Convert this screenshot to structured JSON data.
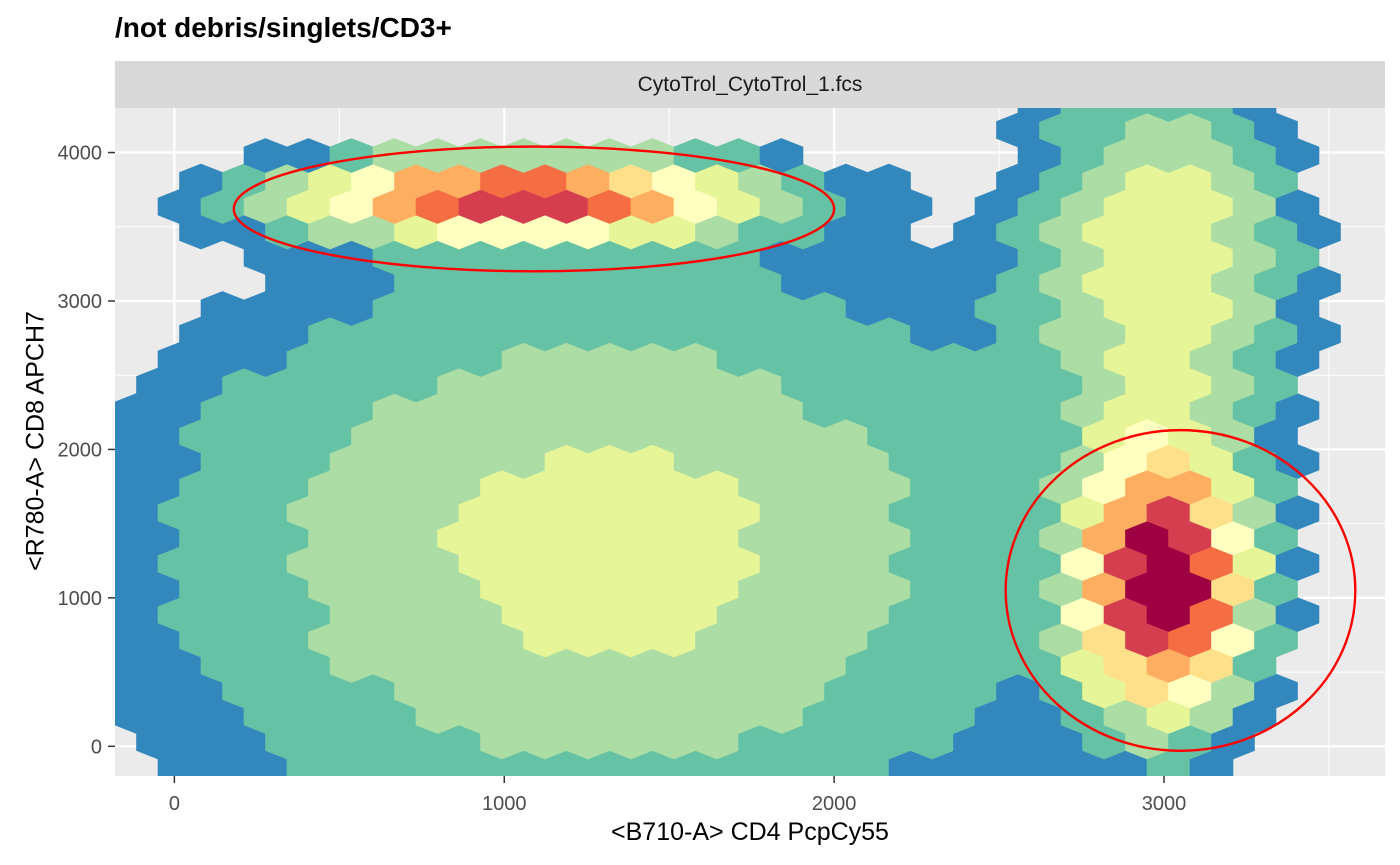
{
  "chart_data": {
    "type": "hexbin",
    "title": "/not debris/singlets/CD3+",
    "facet": "CytoTrol_CytoTrol_1.fcs",
    "xlabel": "<B710-A> CD4 PcpCy55",
    "ylabel": "<R780-A> CD8 APCH7",
    "xlim": [
      -180,
      3670
    ],
    "ylim": [
      -200,
      4300
    ],
    "xticks": [
      0,
      1000,
      2000,
      3000
    ],
    "yticks": [
      0,
      1000,
      2000,
      3000,
      4000
    ],
    "grid": true,
    "palette": "Spectral (reversed)",
    "colors": [
      "#5e4fa2",
      "#3288bd",
      "#66c2a5",
      "#abdda4",
      "#e6f598",
      "#ffffbf",
      "#fee08b",
      "#fdae61",
      "#f46d43",
      "#d53e4f",
      "#9e0142"
    ],
    "populations": [
      {
        "cx": 1050,
        "cy": 3700,
        "sx": 430,
        "sy": 170,
        "peak": 0.8
      },
      {
        "cx": 1300,
        "cy": 1300,
        "sx": 900,
        "sy": 1350,
        "peak": 0.28
      },
      {
        "cx": 3000,
        "cy": 1100,
        "sx": 160,
        "sy": 550,
        "peak": 1.0
      },
      {
        "cx": 3000,
        "cy": 3300,
        "sx": 260,
        "sy": 900,
        "peak": 0.3
      }
    ],
    "gates": [
      {
        "shape": "ellipse",
        "center": [
          1090,
          3620
        ],
        "rx": 910,
        "ry": 420,
        "color": "#ff0000"
      },
      {
        "shape": "ellipse",
        "center": [
          3050,
          1050
        ],
        "rx": 530,
        "ry": 1080,
        "color": "#ff0000"
      }
    ]
  }
}
